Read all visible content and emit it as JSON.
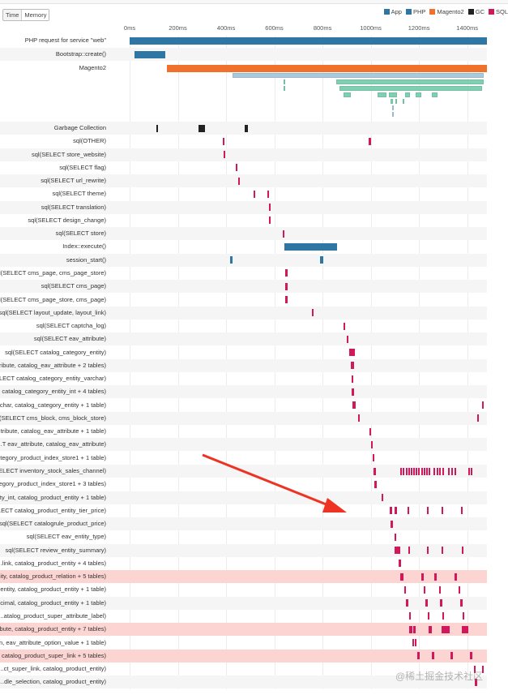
{
  "toggle": {
    "time": "Time",
    "memory": "Memory"
  },
  "legend": [
    {
      "label": "App",
      "color": "#2e77a5"
    },
    {
      "label": "PHP",
      "color": "#2e77a5"
    },
    {
      "label": "Magento2",
      "color": "#f0712c"
    },
    {
      "label": "GC",
      "color": "#222222"
    },
    {
      "label": "SQL",
      "color": "#d0185a"
    }
  ],
  "axis": {
    "ticks": [
      "0ms",
      "200ms",
      "400ms",
      "600ms",
      "800ms",
      "1000ms",
      "1200ms",
      "1400ms"
    ],
    "tick_values": [
      0,
      200,
      400,
      600,
      800,
      1000,
      1200,
      1400
    ],
    "max_ms": 1482
  },
  "colors": {
    "php": "#2e77a5",
    "magento": "#f0712c",
    "gc": "#222222",
    "sql": "#d0185a",
    "span_blue": "#a9c9dc",
    "span_green": "#7fd0b2"
  },
  "top_rows": [
    {
      "label": "PHP request for service \"web\"",
      "type": "php",
      "bars": [
        [
          0,
          1482
        ]
      ]
    },
    {
      "label": "Bootstrap::create()",
      "type": "php",
      "bars": [
        [
          20,
          148
        ]
      ]
    },
    {
      "label": "Magento2",
      "type": "magento",
      "bars": [
        [
          155,
          1482
        ]
      ]
    }
  ],
  "nested_spans": [
    {
      "color": "span_blue",
      "bars": [
        [
          427,
          1468
        ]
      ]
    },
    {
      "color": "span_green",
      "bars": [
        [
          638,
          641
        ],
        [
          857,
          1468
        ]
      ]
    },
    {
      "color": "span_green",
      "bars": [
        [
          638,
          641
        ],
        [
          870,
          1462
        ]
      ]
    },
    {
      "color": "span_green",
      "bars": [
        [
          887,
          917
        ],
        [
          1028,
          1065
        ],
        [
          1075,
          1109
        ],
        [
          1142,
          1163
        ],
        [
          1186,
          1210
        ],
        [
          1253,
          1277
        ]
      ]
    },
    {
      "color": "span_green",
      "bars": [
        [
          1082,
          1092
        ],
        [
          1102,
          1105
        ],
        [
          1132,
          1135
        ]
      ]
    },
    {
      "color": "span_blue",
      "bars": [
        [
          1089,
          1092
        ]
      ]
    },
    {
      "color": "span_blue",
      "bars": [
        [
          1089,
          1092
        ]
      ]
    }
  ],
  "rows": [
    {
      "label": "Garbage Collection",
      "type": "gc",
      "bars": [
        [
          111,
          117
        ],
        [
          286,
          312
        ],
        [
          477,
          489
        ]
      ]
    },
    {
      "label": "sql(OTHER)",
      "type": "sql",
      "bars": [
        [
          386,
          392
        ],
        [
          991,
          1000
        ]
      ]
    },
    {
      "label": "sql(SELECT store_website)",
      "type": "sql",
      "bars": [
        [
          390,
          396
        ]
      ]
    },
    {
      "label": "sql(SELECT flag)",
      "type": "sql",
      "bars": [
        [
          440,
          446
        ]
      ]
    },
    {
      "label": "sql(SELECT url_rewrite)",
      "type": "sql",
      "bars": [
        [
          450,
          456
        ]
      ]
    },
    {
      "label": "sql(SELECT theme)",
      "type": "sql",
      "bars": [
        [
          514,
          522
        ],
        [
          571,
          578
        ]
      ]
    },
    {
      "label": "sql(SELECT translation)",
      "type": "sql",
      "bars": [
        [
          578,
          584
        ]
      ]
    },
    {
      "label": "sql(SELECT design_change)",
      "type": "sql",
      "bars": [
        [
          578,
          584
        ]
      ]
    },
    {
      "label": "sql(SELECT store)",
      "type": "sql",
      "bars": [
        [
          635,
          642
        ]
      ]
    },
    {
      "label": "Index::execute()",
      "type": "php",
      "bars": [
        [
          642,
          860
        ]
      ]
    },
    {
      "label": "session_start()",
      "type": "php",
      "bars": [
        [
          417,
          427
        ],
        [
          790,
          803
        ]
      ]
    },
    {
      "label": "sql(SELECT cms_page, cms_page_store)",
      "type": "sql",
      "bars": [
        [
          645,
          655
        ]
      ]
    },
    {
      "label": "sql(SELECT cms_page)",
      "type": "sql",
      "bars": [
        [
          645,
          655
        ]
      ]
    },
    {
      "label": "sql(SELECT cms_page_store, cms_page)",
      "type": "sql",
      "bars": [
        [
          645,
          655
        ]
      ]
    },
    {
      "label": "sql(SELECT layout_update, layout_link)",
      "type": "sql",
      "bars": [
        [
          756,
          763
        ]
      ]
    },
    {
      "label": "sql(SELECT captcha_log)",
      "type": "sql",
      "bars": [
        [
          887,
          894
        ]
      ]
    },
    {
      "label": "sql(SELECT eav_attribute)",
      "type": "sql",
      "bars": [
        [
          900,
          907
        ]
      ]
    },
    {
      "label": "sql(SELECT catalog_category_entity)",
      "type": "sql",
      "bars": [
        [
          911,
          934
        ]
      ]
    },
    {
      "label": "...ribute, catalog_eav_attribute + 2 tables)",
      "type": "sql",
      "bars": [
        [
          917,
          931
        ]
      ]
    },
    {
      "label": "...LECT catalog_category_entity_varchar)",
      "type": "sql",
      "bars": [
        [
          921,
          929
        ]
      ]
    },
    {
      "label": "..., catalog_category_entity_int + 4 tables)",
      "type": "sql",
      "bars": [
        [
          921,
          931
        ]
      ]
    },
    {
      "label": "...char, catalog_category_entity + 1 table)",
      "type": "sql",
      "bars": [
        [
          924,
          937
        ],
        [
          1462,
          1470
        ]
      ]
    },
    {
      "label": "sql(SELECT cms_block, cms_block_store)",
      "type": "sql",
      "bars": [
        [
          948,
          955
        ],
        [
          1441,
          1448
        ]
      ]
    },
    {
      "label": "...tribute, catalog_eav_attribute + 1 table)",
      "type": "sql",
      "bars": [
        [
          995,
          1002
        ]
      ]
    },
    {
      "label": "...T eav_attribute, catalog_eav_attribute)",
      "type": "sql",
      "bars": [
        [
          1001,
          1008
        ]
      ]
    },
    {
      "label": "...tegory_product_index_store1 + 1 table)",
      "type": "sql",
      "bars": [
        [
          1008,
          1015
        ]
      ]
    },
    {
      "label": "...ELECT inventory_stock_sales_channel)",
      "type": "sql",
      "bars": [
        [
          1011,
          1020
        ],
        [
          1122,
          1127
        ],
        [
          1134,
          1139
        ],
        [
          1146,
          1151
        ],
        [
          1156,
          1161
        ],
        [
          1166,
          1171
        ],
        [
          1176,
          1181
        ],
        [
          1186,
          1191
        ],
        [
          1196,
          1201
        ],
        [
          1210,
          1215
        ],
        [
          1220,
          1225
        ],
        [
          1230,
          1235
        ],
        [
          1240,
          1245
        ],
        [
          1260,
          1265
        ],
        [
          1272,
          1277
        ],
        [
          1284,
          1289
        ],
        [
          1296,
          1301
        ],
        [
          1322,
          1327
        ],
        [
          1334,
          1339
        ],
        [
          1346,
          1351
        ],
        [
          1406,
          1411
        ],
        [
          1416,
          1421
        ]
      ]
    },
    {
      "label": "...egory_product_index_store1 + 3 tables)",
      "type": "sql",
      "bars": [
        [
          1015,
          1024
        ]
      ]
    },
    {
      "label": "...ty_int, catalog_product_entity + 1 table)",
      "type": "sql",
      "bars": [
        [
          1045,
          1051
        ]
      ]
    },
    {
      "label": "...ECT catalog_product_entity_tier_price)",
      "type": "sql",
      "bars": [
        [
          1079,
          1089
        ],
        [
          1100,
          1109
        ],
        [
          1152,
          1158
        ],
        [
          1233,
          1239
        ],
        [
          1294,
          1300
        ],
        [
          1374,
          1380
        ]
      ]
    },
    {
      "label": "sql(SELECT catalogrule_product_price)",
      "type": "sql",
      "bars": [
        [
          1082,
          1092
        ]
      ]
    },
    {
      "label": "sql(SELECT eav_entity_type)",
      "type": "sql",
      "bars": [
        [
          1099,
          1105
        ]
      ]
    },
    {
      "label": "sql(SELECT review_entity_summary)",
      "type": "sql",
      "bars": [
        [
          1099,
          1122
        ],
        [
          1156,
          1162
        ],
        [
          1233,
          1239
        ],
        [
          1294,
          1300
        ],
        [
          1378,
          1384
        ]
      ]
    },
    {
      "label": "...link, catalog_product_entity + 4 tables)",
      "type": "sql",
      "bars": [
        [
          1116,
          1125
        ]
      ]
    },
    {
      "label": "...ity, catalog_product_relation + 5 tables)",
      "type": "sql",
      "highlight": true,
      "bars": [
        [
          1122,
          1136
        ],
        [
          1210,
          1220
        ],
        [
          1264,
          1274
        ],
        [
          1348,
          1358
        ]
      ]
    },
    {
      "label": "...entity, catalog_product_entity + 1 table)",
      "type": "sql",
      "bars": [
        [
          1140,
          1147
        ],
        [
          1221,
          1228
        ],
        [
          1282,
          1289
        ],
        [
          1365,
          1372
        ]
      ]
    },
    {
      "label": "...cimal, catalog_product_entity + 1 table)",
      "type": "sql",
      "bars": [
        [
          1145,
          1155
        ],
        [
          1228,
          1236
        ],
        [
          1288,
          1296
        ],
        [
          1372,
          1380
        ]
      ]
    },
    {
      "label": "...atalog_product_super_attribute_label)",
      "type": "sql",
      "bars": [
        [
          1159,
          1165
        ],
        [
          1236,
          1242
        ],
        [
          1297,
          1303
        ],
        [
          1381,
          1387
        ]
      ]
    },
    {
      "label": "...bute, catalog_product_entity + 7 tables)",
      "type": "sql",
      "highlight": true,
      "bars": [
        [
          1159,
          1172
        ],
        [
          1175,
          1186
        ],
        [
          1240,
          1253
        ],
        [
          1294,
          1327
        ],
        [
          1378,
          1404
        ]
      ]
    },
    {
      "label": "...n, eav_attribute_option_value + 1 table)",
      "type": "sql",
      "bars": [
        [
          1173,
          1180
        ],
        [
          1183,
          1190
        ]
      ]
    },
    {
      "label": "..., catalog_product_super_link + 5 tables)",
      "type": "sql",
      "highlight": true,
      "bars": [
        [
          1193,
          1203
        ],
        [
          1254,
          1262
        ],
        [
          1331,
          1342
        ],
        [
          1412,
          1422
        ]
      ]
    },
    {
      "label": "...ct_super_link, catalog_product_entity)",
      "type": "sql",
      "bars": [
        [
          1428,
          1435
        ],
        [
          1462,
          1469
        ]
      ]
    },
    {
      "label": "...dle_selection, catalog_product_entity)",
      "type": "sql",
      "bars": [
        [
          1432,
          1440
        ]
      ]
    }
  ],
  "watermark": "@稀土掘金技术社区"
}
